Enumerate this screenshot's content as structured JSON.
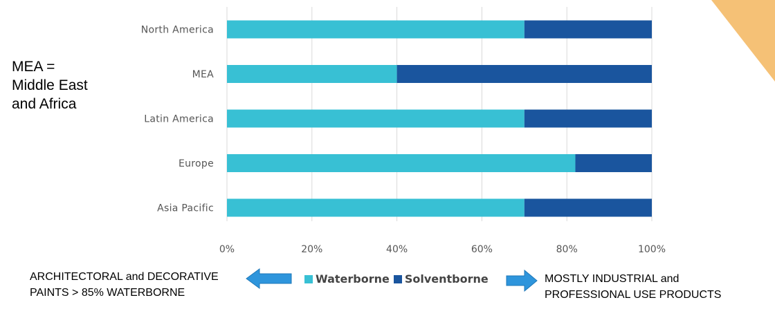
{
  "side_note": [
    "MEA =",
    "Middle East",
    "and Africa"
  ],
  "notes": {
    "left": [
      "ARCHITECTORAL and DECORATIVE",
      "PAINTS > 85% WATERBORNE"
    ],
    "right": [
      "MOSTLY INDUSTRIAL and",
      "PROFESSIONAL USE PRODUCTS"
    ]
  },
  "icons": {
    "left_arrow": "left-arrow-icon",
    "right_arrow": "right-arrow-icon"
  },
  "colors": {
    "waterborne": "#38c0d4",
    "solventborne": "#1a559e",
    "arrow": "#2e95dc",
    "corner": "#f5c176",
    "grid": "#d9d9d9"
  },
  "chart_data": {
    "type": "bar",
    "orientation": "horizontal",
    "stacked": true,
    "categories": [
      "North America",
      "MEA",
      "Latin America",
      "Europe",
      "Asia Pacific"
    ],
    "series": [
      {
        "name": "Waterborne",
        "values": [
          70,
          40,
          70,
          82,
          70
        ]
      },
      {
        "name": "Solventborne",
        "values": [
          30,
          60,
          30,
          18,
          30
        ]
      }
    ],
    "xlim": [
      0,
      100
    ],
    "xticks": [
      "0%",
      "20%",
      "40%",
      "60%",
      "80%",
      "100%"
    ],
    "grid": true,
    "legend": "bottom"
  }
}
